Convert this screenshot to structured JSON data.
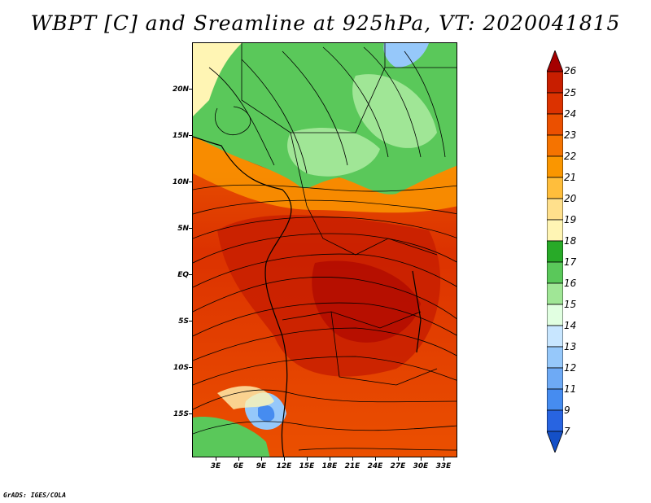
{
  "title": "WBPT [C] and Sreamline at 925hPa, VT: 2020041815",
  "credit": "GrADS: IGES/COLA",
  "y_axis_ticks": [
    "20N",
    "15N",
    "10N",
    "5N",
    "EQ",
    "5S",
    "10S",
    "15S"
  ],
  "x_axis_ticks": [
    "3E",
    "6E",
    "9E",
    "12E",
    "15E",
    "18E",
    "21E",
    "24E",
    "27E",
    "30E",
    "33E"
  ],
  "colorbar": {
    "labels": [
      "26",
      "25",
      "24",
      "23",
      "22",
      "21",
      "20",
      "19",
      "18",
      "17",
      "16",
      "15",
      "14",
      "13",
      "12",
      "11",
      "9",
      "7"
    ],
    "colors": [
      "#a50000",
      "#c81e00",
      "#dc3200",
      "#eb5000",
      "#f57300",
      "#fa9600",
      "#ffbe3c",
      "#ffe08c",
      "#fff5b4",
      "#28aa28",
      "#5ac85a",
      "#a0e696",
      "#e1ffe1",
      "#c8e6ff",
      "#96c8fa",
      "#6eaaf5",
      "#468cf0",
      "#2864e1",
      "#1450c8"
    ]
  },
  "map": {
    "variable": "WBPT",
    "units": "C",
    "level": "925hPa",
    "valid_time": "2020041815",
    "lat_range": [
      "19S",
      "24N"
    ],
    "lon_range": [
      "0E",
      "35E"
    ]
  }
}
